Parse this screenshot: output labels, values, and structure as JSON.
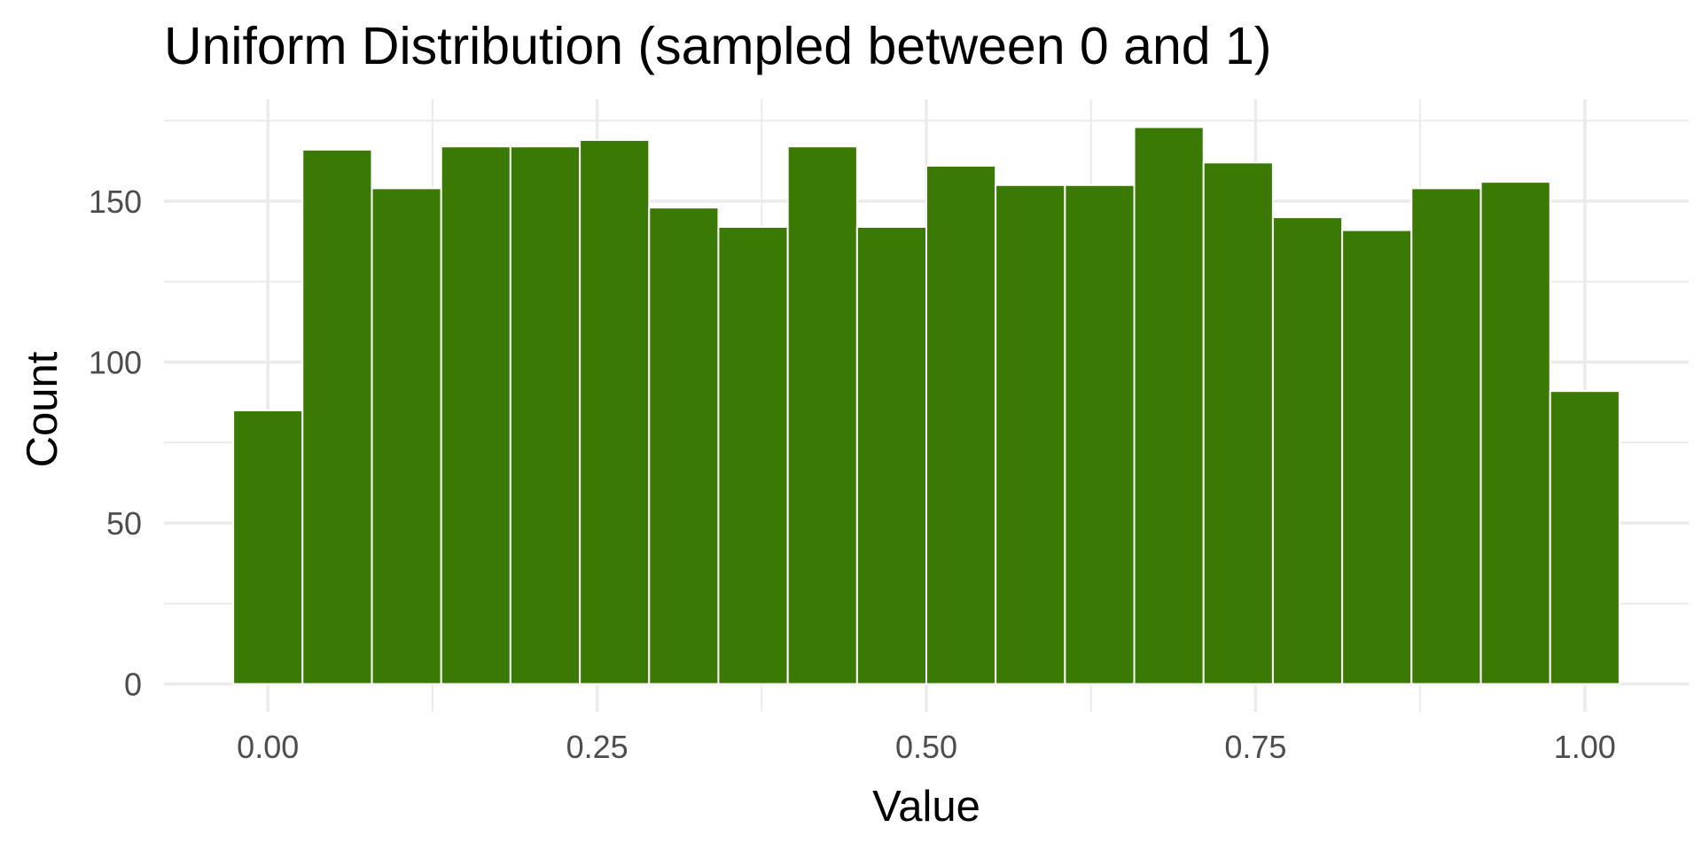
{
  "chart_data": {
    "type": "bar",
    "title": "Uniform Distribution (sampled between 0 and 1)",
    "xlabel": "Value",
    "ylabel": "Count",
    "bin_width": 0.05263,
    "x": [
      0.0,
      0.0526,
      0.1053,
      0.1579,
      0.2105,
      0.2632,
      0.3158,
      0.3684,
      0.4211,
      0.4737,
      0.5263,
      0.5789,
      0.6316,
      0.6842,
      0.7368,
      0.7895,
      0.8421,
      0.8947,
      0.9474,
      1.0
    ],
    "values": [
      85,
      166,
      154,
      167,
      167,
      169,
      148,
      142,
      167,
      142,
      161,
      155,
      155,
      173,
      162,
      145,
      141,
      154,
      156,
      91
    ],
    "xlim": [
      -0.0789,
      1.0789
    ],
    "ylim": [
      -8.65,
      181.65
    ],
    "x_ticks": [
      0.0,
      0.25,
      0.5,
      0.75,
      1.0
    ],
    "x_tick_labels": [
      "0.00",
      "0.25",
      "0.50",
      "0.75",
      "1.00"
    ],
    "y_ticks": [
      0,
      50,
      100,
      150
    ],
    "y_tick_labels": [
      "0",
      "50",
      "100",
      "150"
    ],
    "grid": true,
    "legend": "none",
    "colors": {
      "bar_fill": "#3A7A04",
      "bar_outline": "#FFFFFF",
      "grid": "#EBEBEB",
      "background": "#FFFFFF"
    }
  }
}
